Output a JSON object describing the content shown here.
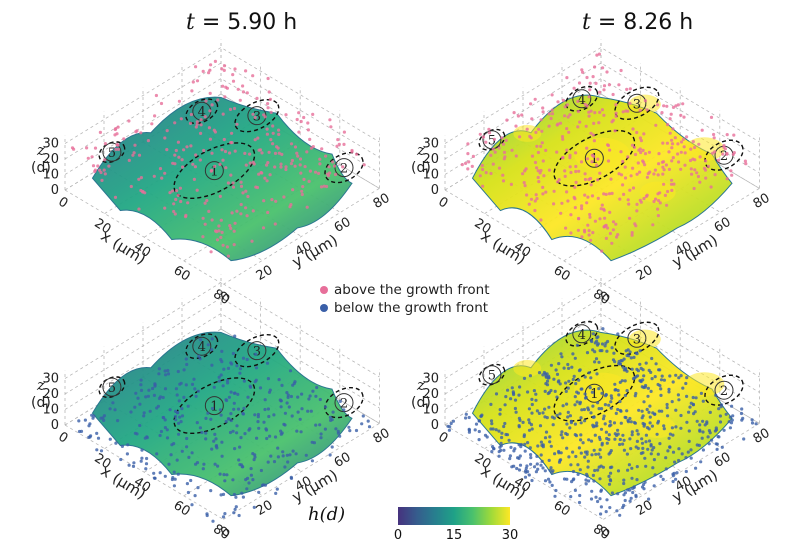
{
  "titles": {
    "left_prefix": "t",
    "left_value": "= 5.90 h",
    "right_prefix": "t",
    "right_value": "= 8.26 h"
  },
  "legend": {
    "above_label": "above the growth front",
    "above_color": "#e76f9a",
    "below_label": "below the growth front",
    "below_color": "#3a5fa8"
  },
  "colorbar": {
    "label": "h(d)",
    "ticks": [
      "0",
      "15",
      "30"
    ],
    "colors": [
      "#46327e",
      "#365c8d",
      "#277f8e",
      "#1fa187",
      "#4ac16d",
      "#a0da39",
      "#fde725"
    ]
  },
  "chart_data": [
    {
      "type": "surface3d",
      "panel": "top-left",
      "time": "t = 5.90 h",
      "points": "above the growth front",
      "zlabel": "z\n(d)",
      "xlabel": "x (μm)",
      "ylabel": "y (μm)",
      "z_ticks": [
        "0",
        "10",
        "20",
        "30"
      ],
      "x_ticks": [
        "0",
        "20",
        "40",
        "60",
        "80"
      ],
      "y_ticks": [
        "0",
        "20",
        "40",
        "60",
        "80"
      ],
      "zlim": [
        0,
        30
      ],
      "xlim": [
        0,
        80
      ],
      "ylim": [
        0,
        80
      ],
      "regions": [
        "1",
        "2",
        "3",
        "4",
        "5"
      ]
    },
    {
      "type": "surface3d",
      "panel": "top-right",
      "time": "t = 8.26 h",
      "points": "above the growth front",
      "zlabel": "z\n(d)",
      "xlabel": "x (μm)",
      "ylabel": "y (μm)",
      "z_ticks": [
        "0",
        "10",
        "20",
        "30"
      ],
      "x_ticks": [
        "0",
        "20",
        "40",
        "60",
        "80"
      ],
      "y_ticks": [
        "0",
        "20",
        "40",
        "60",
        "80"
      ],
      "zlim": [
        0,
        30
      ],
      "xlim": [
        0,
        80
      ],
      "ylim": [
        0,
        80
      ],
      "regions": [
        "1",
        "2",
        "3",
        "4",
        "5"
      ]
    },
    {
      "type": "surface3d",
      "panel": "bottom-left",
      "time": "t = 5.90 h",
      "points": "below the growth front",
      "zlabel": "z\n(d)",
      "xlabel": "x (μm)",
      "ylabel": "y (μm)",
      "z_ticks": [
        "0",
        "10",
        "20",
        "30"
      ],
      "x_ticks": [
        "0",
        "20",
        "40",
        "60",
        "80"
      ],
      "y_ticks": [
        "0",
        "20",
        "40",
        "60",
        "80"
      ],
      "zlim": [
        0,
        30
      ],
      "xlim": [
        0,
        80
      ],
      "ylim": [
        0,
        80
      ],
      "regions": [
        "1",
        "2",
        "3",
        "4",
        "5"
      ]
    },
    {
      "type": "surface3d",
      "panel": "bottom-right",
      "time": "t = 8.26 h",
      "points": "below the growth front",
      "zlabel": "z\n(d)",
      "xlabel": "x (μm)",
      "ylabel": "y (μm)",
      "z_ticks": [
        "0",
        "10",
        "20",
        "30"
      ],
      "x_ticks": [
        "0",
        "20",
        "40",
        "60",
        "80"
      ],
      "y_ticks": [
        "0",
        "20",
        "40",
        "60",
        "80"
      ],
      "zlim": [
        0,
        30
      ],
      "xlim": [
        0,
        80
      ],
      "ylim": [
        0,
        80
      ],
      "regions": [
        "1",
        "2",
        "3",
        "4",
        "5"
      ]
    }
  ]
}
